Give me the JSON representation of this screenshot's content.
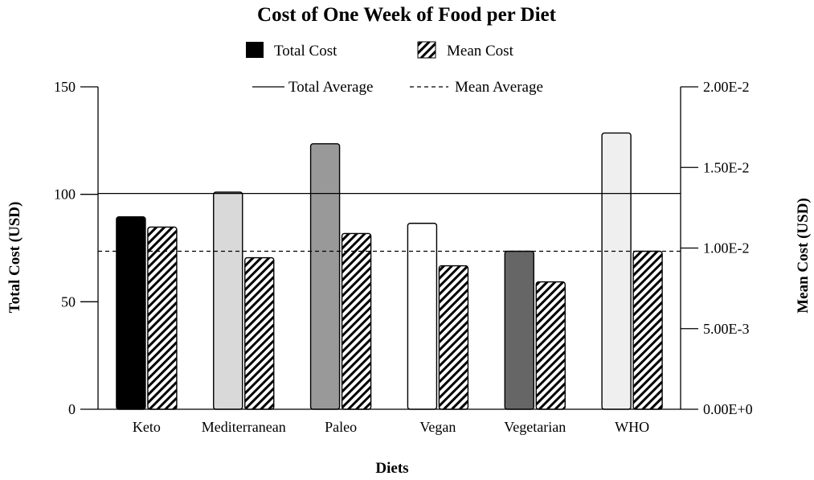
{
  "chart_data": {
    "type": "bar",
    "title": "Cost of One Week of Food per Diet",
    "xlabel": "Diets",
    "ylabel_left": "Total Cost (USD)",
    "ylabel_right": "Mean Cost (USD)",
    "ylim_left": [
      0,
      150
    ],
    "ylim_right": [
      0,
      0.02
    ],
    "yticks_left": [
      "0",
      "50",
      "100",
      "150"
    ],
    "yticks_left_values": [
      0,
      50,
      100,
      150
    ],
    "yticks_right": [
      "0.00E+0",
      "5.00E-3",
      "1.00E-2",
      "1.50E-2",
      "2.00E-2"
    ],
    "yticks_right_values": [
      0,
      0.005,
      0.01,
      0.015,
      0.02
    ],
    "categories": [
      "Keto",
      "Mediterranean",
      "Paleo",
      "Vegan",
      "Vegetarian",
      "WHO"
    ],
    "series": [
      {
        "name": "Total Cost",
        "axis": "left",
        "values": [
          89.5,
          101,
          123.5,
          86.5,
          73.5,
          128.5
        ],
        "colors": [
          "#000000",
          "#d9d9d9",
          "#999999",
          "#ffffff",
          "#666666",
          "#efefef"
        ]
      },
      {
        "name": "Mean Cost",
        "axis": "right",
        "values": [
          0.0113,
          0.0094,
          0.0109,
          0.0089,
          0.0079,
          0.0098
        ],
        "pattern": "diagonal-hatch"
      }
    ],
    "reference_lines": [
      {
        "name": "Total Average",
        "axis": "left",
        "value": 100.4,
        "style": "solid"
      },
      {
        "name": "Mean Average",
        "axis": "right",
        "value": 0.0098,
        "style": "dashed"
      }
    ],
    "legend": [
      "Total Cost",
      "Mean Cost",
      "Total Average",
      "Mean Average"
    ],
    "legend_position": "top-center"
  }
}
